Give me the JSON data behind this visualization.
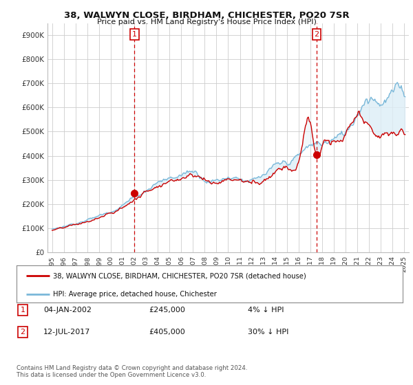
{
  "title": "38, WALWYN CLOSE, BIRDHAM, CHICHESTER, PO20 7SR",
  "subtitle": "Price paid vs. HM Land Registry's House Price Index (HPI)",
  "hpi_color": "#7ab8d9",
  "price_color": "#cc0000",
  "fill_color": "#ddeef7",
  "vline_color": "#cc0000",
  "marker_color": "#cc0000",
  "background_color": "#ffffff",
  "legend_label_price": "38, WALWYN CLOSE, BIRDHAM, CHICHESTER, PO20 7SR (detached house)",
  "legend_label_hpi": "HPI: Average price, detached house, Chichester",
  "transaction1_date": "04-JAN-2002",
  "transaction1_price": 245000,
  "transaction1_pct": "4% ↓ HPI",
  "transaction2_date": "12-JUL-2017",
  "transaction2_price": 405000,
  "transaction2_pct": "30% ↓ HPI",
  "footer": "Contains HM Land Registry data © Crown copyright and database right 2024.\nThis data is licensed under the Open Government Licence v3.0.",
  "ylim": [
    0,
    950000
  ],
  "yticks": [
    0,
    100000,
    200000,
    300000,
    400000,
    500000,
    600000,
    700000,
    800000,
    900000
  ],
  "ytick_labels": [
    "£0",
    "£100K",
    "£200K",
    "£300K",
    "£400K",
    "£500K",
    "£600K",
    "£700K",
    "£800K",
    "£900K"
  ],
  "vline1_x": 2002.01,
  "vline2_x": 2017.54,
  "marker1_x": 2002.01,
  "marker1_y": 245000,
  "marker2_x": 2017.54,
  "marker2_y": 405000,
  "xtick_years": [
    1995,
    1996,
    1997,
    1998,
    1999,
    2000,
    2001,
    2002,
    2003,
    2004,
    2005,
    2006,
    2007,
    2008,
    2009,
    2010,
    2011,
    2012,
    2013,
    2014,
    2015,
    2016,
    2017,
    2018,
    2019,
    2020,
    2021,
    2022,
    2023,
    2024,
    2025
  ]
}
